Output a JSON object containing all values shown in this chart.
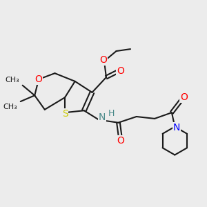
{
  "background_color": "#ececec",
  "bond_color": "#1a1a1a",
  "atom_colors": {
    "O": "#ff0000",
    "S": "#cccc00",
    "N": "#0000ff",
    "N_amide": "#4a8a8a",
    "H": "#4a8a8a",
    "C": "#1a1a1a"
  },
  "font_size": 9,
  "fig_width": 3.0,
  "fig_height": 3.0
}
